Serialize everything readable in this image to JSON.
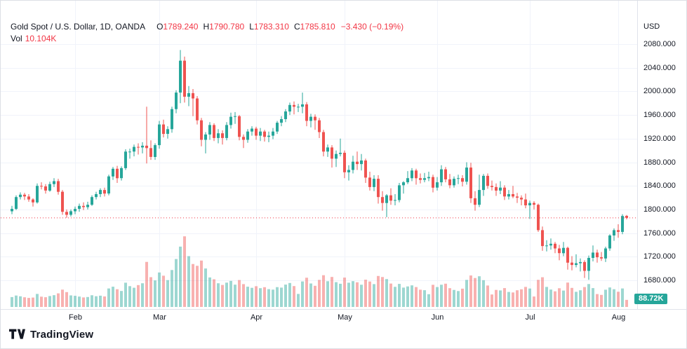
{
  "header": {
    "symbol": "Gold Spot / U.S. Dollar, 1D, OANDA",
    "ohlc": {
      "o_label": "O",
      "o": "1789.240",
      "h_label": "H",
      "h": "1790.780",
      "l_label": "L",
      "l": "1783.310",
      "c_label": "C",
      "c": "1785.810",
      "change": "−3.430 (−0.19%)"
    },
    "vol_label": "Vol",
    "vol_value": "10.104K"
  },
  "price_axis": {
    "currency": "USD",
    "ticks": [
      "2080.000",
      "2040.000",
      "2000.000",
      "1960.000",
      "1920.000",
      "1880.000",
      "1840.000",
      "1800.000",
      "1760.000",
      "1720.000",
      "1680.000"
    ],
    "volume_badge": "88.72K"
  },
  "time_axis": {
    "ticks": [
      {
        "label": "Feb",
        "index": 15
      },
      {
        "label": "Mar",
        "index": 35
      },
      {
        "label": "Apr",
        "index": 58
      },
      {
        "label": "May",
        "index": 79
      },
      {
        "label": "Jun",
        "index": 101
      },
      {
        "label": "Jul",
        "index": 123
      },
      {
        "label": "Aug",
        "index": 144
      }
    ]
  },
  "logo": {
    "text": "TradingView"
  },
  "colors": {
    "up": "#26a69a",
    "down": "#ef5350",
    "vol_up": "rgba(38,166,154,0.45)",
    "vol_down": "rgba(239,83,80,0.45)",
    "grid": "#f0f3fa",
    "axis_border": "#e0e3eb",
    "axis_text": "#131722",
    "last_price_line": "#f23645",
    "badge_bg": "#26a69a"
  },
  "chart_data": {
    "type": "candlestick",
    "title": "Gold Spot / U.S. Dollar, 1D, OANDA",
    "ylabel": "USD",
    "ylim": [
      1655,
      2095
    ],
    "volume_ylim_k": [
      0,
      105
    ],
    "grid": true,
    "last_price": 1785.81,
    "last_change": -3.43,
    "last_change_pct": -0.19,
    "x_month_labels": [
      "Feb",
      "Mar",
      "Apr",
      "May",
      "Jun",
      "Jul",
      "Aug"
    ],
    "columns": [
      "open",
      "high",
      "low",
      "close",
      "volume_k"
    ],
    "ohlcv": [
      [
        1797,
        1806,
        1792,
        1801,
        14.1
      ],
      [
        1801,
        1824,
        1799,
        1821,
        16.3
      ],
      [
        1821,
        1829,
        1817,
        1825,
        15.2
      ],
      [
        1825,
        1828,
        1816,
        1822,
        13.8
      ],
      [
        1822,
        1826,
        1813,
        1817,
        12.9
      ],
      [
        1817,
        1819,
        1805,
        1812,
        13.4
      ],
      [
        1812,
        1844,
        1810,
        1840,
        18.6
      ],
      [
        1840,
        1846,
        1834,
        1839,
        14.7
      ],
      [
        1839,
        1843,
        1827,
        1832,
        13.9
      ],
      [
        1832,
        1847,
        1830,
        1843,
        15.6
      ],
      [
        1843,
        1853,
        1838,
        1848,
        16.8
      ],
      [
        1848,
        1852,
        1825,
        1830,
        19.4
      ],
      [
        1830,
        1833,
        1791,
        1796,
        24.7
      ],
      [
        1796,
        1800,
        1786,
        1791,
        21.2
      ],
      [
        1791,
        1800,
        1788,
        1797,
        16.5
      ],
      [
        1797,
        1805,
        1792,
        1801,
        15.9
      ],
      [
        1801,
        1810,
        1796,
        1806,
        14.8
      ],
      [
        1806,
        1812,
        1799,
        1804,
        13.6
      ],
      [
        1804,
        1813,
        1800,
        1808,
        14.2
      ],
      [
        1808,
        1824,
        1806,
        1821,
        16.7
      ],
      [
        1821,
        1830,
        1817,
        1826,
        15.3
      ],
      [
        1826,
        1836,
        1821,
        1833,
        16.1
      ],
      [
        1833,
        1837,
        1822,
        1827,
        15.0
      ],
      [
        1827,
        1859,
        1824,
        1856,
        26.4
      ],
      [
        1856,
        1872,
        1850,
        1869,
        28.9
      ],
      [
        1869,
        1874,
        1845,
        1853,
        25.3
      ],
      [
        1853,
        1873,
        1849,
        1870,
        22.8
      ],
      [
        1870,
        1902,
        1867,
        1898,
        34.6
      ],
      [
        1898,
        1903,
        1886,
        1898,
        29.7
      ],
      [
        1898,
        1910,
        1890,
        1906,
        27.4
      ],
      [
        1906,
        1912,
        1893,
        1905,
        31.2
      ],
      [
        1905,
        1914,
        1895,
        1908,
        33.8
      ],
      [
        1908,
        1974,
        1878,
        1904,
        64.3
      ],
      [
        1904,
        1917,
        1884,
        1889,
        42.5
      ],
      [
        1889,
        1912,
        1884,
        1909,
        37.9
      ],
      [
        1909,
        1950,
        1903,
        1944,
        49.2
      ],
      [
        1944,
        1952,
        1922,
        1928,
        44.6
      ],
      [
        1928,
        1941,
        1920,
        1936,
        38.3
      ],
      [
        1936,
        1974,
        1930,
        1970,
        52.7
      ],
      [
        1970,
        2002,
        1963,
        1998,
        68.4
      ],
      [
        1998,
        2070,
        1980,
        2052,
        86.1
      ],
      [
        2052,
        2059,
        1981,
        1991,
        100.8
      ],
      [
        1991,
        2009,
        1975,
        1997,
        72.5
      ],
      [
        1997,
        2004,
        1958,
        1988,
        61.3
      ],
      [
        1988,
        1992,
        1944,
        1951,
        58.7
      ],
      [
        1951,
        1955,
        1907,
        1918,
        66.2
      ],
      [
        1918,
        1931,
        1895,
        1927,
        54.9
      ],
      [
        1927,
        1948,
        1918,
        1943,
        42.1
      ],
      [
        1943,
        1946,
        1916,
        1921,
        39.5
      ],
      [
        1921,
        1936,
        1912,
        1929,
        33.8
      ],
      [
        1929,
        1934,
        1910,
        1921,
        31.4
      ],
      [
        1921,
        1948,
        1917,
        1943,
        34.7
      ],
      [
        1943,
        1964,
        1937,
        1957,
        37.2
      ],
      [
        1957,
        1965,
        1945,
        1958,
        31.8
      ],
      [
        1958,
        1960,
        1917,
        1923,
        38.4
      ],
      [
        1923,
        1927,
        1904,
        1918,
        32.6
      ],
      [
        1918,
        1936,
        1913,
        1932,
        28.9
      ],
      [
        1932,
        1941,
        1925,
        1937,
        27.3
      ],
      [
        1937,
        1940,
        1918,
        1925,
        29.6
      ],
      [
        1925,
        1938,
        1916,
        1932,
        26.8
      ],
      [
        1932,
        1935,
        1915,
        1923,
        28.2
      ],
      [
        1923,
        1932,
        1914,
        1925,
        25.4
      ],
      [
        1925,
        1938,
        1919,
        1932,
        24.7
      ],
      [
        1932,
        1950,
        1928,
        1947,
        28.3
      ],
      [
        1947,
        1958,
        1941,
        1953,
        27.6
      ],
      [
        1953,
        1970,
        1948,
        1966,
        31.9
      ],
      [
        1966,
        1981,
        1960,
        1977,
        34.2
      ],
      [
        1977,
        1983,
        1961,
        1974,
        29.8
      ],
      [
        1974,
        1979,
        1965,
        1974,
        18.6
      ],
      [
        1974,
        1998,
        1963,
        1978,
        36.4
      ],
      [
        1978,
        1982,
        1941,
        1950,
        41.7
      ],
      [
        1950,
        1962,
        1939,
        1957,
        33.5
      ],
      [
        1957,
        1961,
        1935,
        1951,
        30.2
      ],
      [
        1951,
        1955,
        1921,
        1931,
        38.6
      ],
      [
        1931,
        1935,
        1890,
        1898,
        45.3
      ],
      [
        1898,
        1910,
        1889,
        1905,
        36.7
      ],
      [
        1905,
        1909,
        1871,
        1886,
        42.8
      ],
      [
        1886,
        1900,
        1872,
        1894,
        35.4
      ],
      [
        1894,
        1920,
        1890,
        1896,
        33.1
      ],
      [
        1896,
        1900,
        1853,
        1863,
        41.9
      ],
      [
        1863,
        1875,
        1849,
        1867,
        34.6
      ],
      [
        1867,
        1891,
        1861,
        1881,
        36.8
      ],
      [
        1881,
        1898,
        1867,
        1877,
        35.2
      ],
      [
        1877,
        1894,
        1866,
        1883,
        31.7
      ],
      [
        1883,
        1886,
        1845,
        1854,
        38.9
      ],
      [
        1854,
        1864,
        1832,
        1838,
        36.3
      ],
      [
        1838,
        1858,
        1831,
        1852,
        32.6
      ],
      [
        1852,
        1858,
        1810,
        1821,
        44.2
      ],
      [
        1821,
        1831,
        1798,
        1811,
        42.7
      ],
      [
        1811,
        1826,
        1787,
        1824,
        39.8
      ],
      [
        1824,
        1836,
        1808,
        1815,
        33.4
      ],
      [
        1815,
        1826,
        1807,
        1816,
        28.7
      ],
      [
        1816,
        1845,
        1812,
        1841,
        32.9
      ],
      [
        1841,
        1848,
        1827,
        1846,
        27.6
      ],
      [
        1846,
        1865,
        1843,
        1853,
        29.3
      ],
      [
        1853,
        1870,
        1848,
        1866,
        30.8
      ],
      [
        1866,
        1869,
        1842,
        1853,
        28.4
      ],
      [
        1853,
        1861,
        1844,
        1850,
        24.6
      ],
      [
        1850,
        1862,
        1846,
        1853,
        23.9
      ],
      [
        1853,
        1864,
        1848,
        1855,
        18.2
      ],
      [
        1855,
        1859,
        1829,
        1837,
        31.6
      ],
      [
        1837,
        1855,
        1832,
        1846,
        28.4
      ],
      [
        1846,
        1875,
        1840,
        1868,
        31.7
      ],
      [
        1868,
        1872,
        1846,
        1851,
        33.2
      ],
      [
        1851,
        1860,
        1836,
        1841,
        26.8
      ],
      [
        1841,
        1856,
        1837,
        1852,
        24.3
      ],
      [
        1852,
        1859,
        1843,
        1853,
        22.7
      ],
      [
        1853,
        1858,
        1839,
        1847,
        26.1
      ],
      [
        1847,
        1880,
        1842,
        1871,
        38.6
      ],
      [
        1871,
        1879,
        1811,
        1819,
        44.9
      ],
      [
        1819,
        1831,
        1798,
        1808,
        41.3
      ],
      [
        1808,
        1859,
        1804,
        1833,
        43.8
      ],
      [
        1833,
        1860,
        1823,
        1857,
        38.2
      ],
      [
        1857,
        1861,
        1835,
        1840,
        30.6
      ],
      [
        1840,
        1849,
        1832,
        1838,
        17.8
      ],
      [
        1838,
        1844,
        1823,
        1832,
        24.3
      ],
      [
        1832,
        1848,
        1826,
        1837,
        23.6
      ],
      [
        1837,
        1841,
        1816,
        1822,
        26.9
      ],
      [
        1822,
        1833,
        1817,
        1826,
        21.4
      ],
      [
        1826,
        1840,
        1819,
        1822,
        20.7
      ],
      [
        1822,
        1828,
        1811,
        1820,
        23.8
      ],
      [
        1820,
        1824,
        1807,
        1817,
        25.2
      ],
      [
        1817,
        1827,
        1802,
        1807,
        28.6
      ],
      [
        1807,
        1815,
        1784,
        1811,
        26.3
      ],
      [
        1811,
        1814,
        1800,
        1808,
        14.9
      ],
      [
        1808,
        1810,
        1762,
        1765,
        38.7
      ],
      [
        1765,
        1771,
        1730,
        1738,
        42.4
      ],
      [
        1738,
        1748,
        1729,
        1739,
        28.6
      ],
      [
        1739,
        1751,
        1732,
        1742,
        24.8
      ],
      [
        1742,
        1745,
        1726,
        1734,
        22.3
      ],
      [
        1734,
        1740,
        1714,
        1726,
        26.7
      ],
      [
        1726,
        1745,
        1721,
        1735,
        23.4
      ],
      [
        1735,
        1737,
        1698,
        1710,
        34.8
      ],
      [
        1710,
        1721,
        1697,
        1706,
        27.2
      ],
      [
        1706,
        1724,
        1702,
        1709,
        21.6
      ],
      [
        1709,
        1717,
        1695,
        1711,
        23.8
      ],
      [
        1711,
        1714,
        1684,
        1696,
        28.4
      ],
      [
        1696,
        1722,
        1681,
        1718,
        32.7
      ],
      [
        1718,
        1739,
        1712,
        1727,
        26.9
      ],
      [
        1727,
        1732,
        1710,
        1719,
        18.4
      ],
      [
        1719,
        1728,
        1713,
        1717,
        17.2
      ],
      [
        1717,
        1737,
        1711,
        1734,
        24.6
      ],
      [
        1734,
        1758,
        1730,
        1756,
        27.8
      ],
      [
        1756,
        1768,
        1747,
        1765,
        25.3
      ],
      [
        1765,
        1775,
        1752,
        1762,
        21.7
      ],
      [
        1762,
        1792,
        1758,
        1789,
        26.4
      ],
      [
        1789.24,
        1790.78,
        1783.31,
        1785.81,
        10.104
      ]
    ]
  }
}
